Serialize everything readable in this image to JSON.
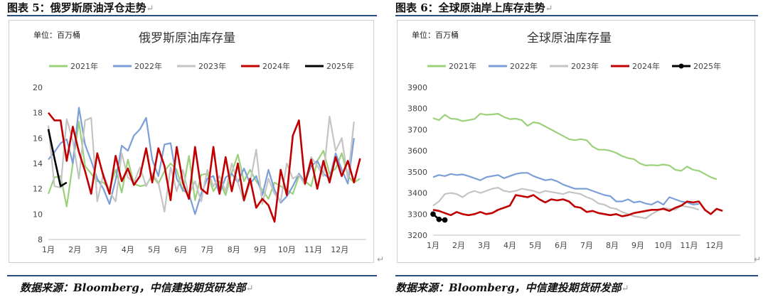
{
  "left": {
    "caption": "图表 5：俄罗斯原油浮仓走势",
    "source": "数据来源：Bloomberg，中信建投期货研发部"
  },
  "right": {
    "caption": "图表 6：全球原油岸上库存走势",
    "source": "数据来源：Bloomberg，中信建投期货研发部"
  },
  "return_mark": "↵",
  "colors": {
    "2021年": "#9bd17a",
    "2022年": "#7b9fd6",
    "2023年": "#c4c4c4",
    "2024年": "#c00000",
    "2025年": "#000000",
    "rule": "#2b4c7e"
  },
  "chart_data": [
    {
      "type": "line",
      "title": "俄罗斯原油库存量",
      "unit": "单位：百万桶",
      "xlabel": "",
      "ylabel": "",
      "ylim": [
        8,
        20
      ],
      "yticks": [
        8,
        10,
        12,
        14,
        16,
        18,
        20
      ],
      "x_range": [
        1,
        13
      ],
      "month_ticks": [
        "1月",
        "2月",
        "3月",
        "4月",
        "5月",
        "6月",
        "7月",
        "8月",
        "9月",
        "10月",
        "11月",
        "12月"
      ],
      "grid": false,
      "legend": "top",
      "series": [
        {
          "name": "2021年",
          "values": [
            11.6,
            12.9,
            13.0,
            10.6,
            14.0,
            17.3,
            13.8,
            13.2,
            12.6,
            12.5,
            12.0,
            13.5,
            11.7,
            14.3,
            12.4,
            12.2,
            12.3,
            13.0,
            12.4,
            13.4,
            14.0,
            13.5,
            11.8,
            14.6,
            11.1,
            13.1,
            13.2,
            11.8,
            12.6,
            11.5,
            13.3,
            14.7,
            12.6,
            13.5,
            12.6,
            11.9,
            11.2,
            12.5,
            12.2,
            11.9,
            11.6,
            13.0,
            12.6,
            12.2,
            14.2,
            15.0,
            13.2,
            13.6,
            14.8,
            13.0,
            12.5,
            12.8
          ]
        },
        {
          "name": "2022年",
          "values": [
            14.3,
            14.9,
            15.6,
            15.9,
            14.0,
            18.4,
            15.5,
            14.2,
            12.8,
            12.0,
            10.8,
            12.7,
            15.4,
            15.0,
            16.2,
            16.7,
            17.6,
            14.3,
            13.0,
            15.5,
            15.6,
            12.8,
            11.9,
            11.6,
            10.0,
            11.6,
            12.8,
            13.0,
            11.6,
            12.9,
            13.2,
            12.5,
            13.6,
            12.4,
            13.0,
            11.5,
            13.5,
            11.9,
            10.9,
            11.4,
            12.2,
            13.2,
            12.5,
            13.8,
            14.2,
            13.2,
            12.8,
            14.8,
            13.5,
            12.4,
            16.0
          ]
        },
        {
          "name": "2023年",
          "values": [
            17.0,
            12.2,
            12.1,
            17.5,
            15.8,
            12.8,
            17.4,
            17.6,
            11.0,
            13.2,
            11.8,
            11.0,
            14.8,
            12.9,
            12.5,
            13.7,
            12.2,
            13.2,
            12.5,
            10.2,
            13.7,
            11.8,
            13.5,
            11.5,
            12.6,
            11.0,
            13.5,
            12.2,
            13.0,
            11.8,
            14.0,
            12.5,
            11.0,
            12.5,
            15.1,
            10.8,
            12.8,
            11.6,
            11.0,
            14.0,
            12.8,
            13.1,
            12.3,
            14.5,
            13.8,
            13.0,
            17.7,
            15.0,
            16.0,
            12.8,
            17.3
          ]
        },
        {
          "name": "2024年",
          "values": [
            18.0,
            17.4,
            17.4,
            14.2,
            16.9,
            14.9,
            13.4,
            11.6,
            14.8,
            13.0,
            11.6,
            14.6,
            12.6,
            13.6,
            12.3,
            13.0,
            15.2,
            12.5,
            15.2,
            13.8,
            11.1,
            15.3,
            12.5,
            11.2,
            15.3,
            12.0,
            11.6,
            15.3,
            11.6,
            14.5,
            11.8,
            14.0,
            11.1,
            12.8,
            10.5,
            11.2,
            10.7,
            9.4,
            13.5,
            11.5,
            16.2,
            17.4,
            12.4,
            14.3,
            12.0,
            14.2,
            12.5,
            14.5,
            13.0,
            14.2,
            12.5,
            14.4
          ]
        },
        {
          "name": "2025年",
          "values": [
            16.7,
            14.4,
            12.2,
            12.5
          ]
        }
      ]
    },
    {
      "type": "line",
      "title": "全球原油库存量",
      "unit": "单位：百万桶",
      "xlabel": "",
      "ylabel": "",
      "ylim": [
        3200,
        3900
      ],
      "yticks": [
        3200,
        3300,
        3400,
        3500,
        3600,
        3700,
        3800,
        3900
      ],
      "x_range": [
        1,
        13
      ],
      "month_ticks": [
        "1月",
        "2月",
        "3月",
        "4月",
        "5月",
        "6月",
        "7月",
        "8月",
        "9月",
        "10月",
        "11月",
        "12月"
      ],
      "grid": false,
      "legend": "top",
      "series": [
        {
          "name": "2021年",
          "values": [
            3755,
            3745,
            3770,
            3752,
            3750,
            3740,
            3745,
            3750,
            3775,
            3770,
            3772,
            3775,
            3760,
            3750,
            3752,
            3745,
            3718,
            3735,
            3730,
            3715,
            3700,
            3685,
            3670,
            3655,
            3650,
            3655,
            3650,
            3620,
            3605,
            3605,
            3600,
            3590,
            3575,
            3565,
            3560,
            3540,
            3530,
            3532,
            3530,
            3535,
            3530,
            3510,
            3505,
            3525,
            3510,
            3505,
            3490,
            3475,
            3465
          ]
        },
        {
          "name": "2022年",
          "values": [
            3475,
            3485,
            3480,
            3490,
            3485,
            3488,
            3480,
            3470,
            3460,
            3475,
            3480,
            3485,
            3470,
            3480,
            3490,
            3495,
            3495,
            3480,
            3470,
            3460,
            3465,
            3455,
            3440,
            3430,
            3420,
            3420,
            3420,
            3410,
            3400,
            3390,
            3385,
            3360,
            3360,
            3370,
            3355,
            3360,
            3350,
            3345,
            3360,
            3345,
            3380,
            3370,
            3360,
            3355,
            3345,
            3348
          ]
        },
        {
          "name": "2023年",
          "values": [
            3340,
            3360,
            3395,
            3400,
            3395,
            3380,
            3400,
            3410,
            3400,
            3410,
            3420,
            3425,
            3410,
            3405,
            3410,
            3420,
            3415,
            3410,
            3400,
            3410,
            3405,
            3400,
            3395,
            3405,
            3400,
            3395,
            3380,
            3370,
            3350,
            3345,
            3330,
            3325,
            3310,
            3300,
            3290,
            3285,
            3280,
            3300,
            3315,
            3330,
            3325,
            3320,
            3340,
            3335,
            3330,
            3320
          ]
        },
        {
          "name": "2024年",
          "values": [
            3320,
            3315,
            3305,
            3295,
            3310,
            3300,
            3295,
            3300,
            3310,
            3300,
            3305,
            3320,
            3330,
            3340,
            3390,
            3385,
            3380,
            3390,
            3370,
            3355,
            3370,
            3365,
            3370,
            3360,
            3335,
            3330,
            3310,
            3315,
            3305,
            3300,
            3295,
            3300,
            3290,
            3295,
            3305,
            3310,
            3315,
            3320,
            3320,
            3325,
            3315,
            3330,
            3340,
            3360,
            3355,
            3360,
            3320,
            3300,
            3325,
            3315
          ]
        },
        {
          "name": "2025年",
          "values": [
            3300,
            3275,
            3272
          ]
        }
      ]
    }
  ]
}
